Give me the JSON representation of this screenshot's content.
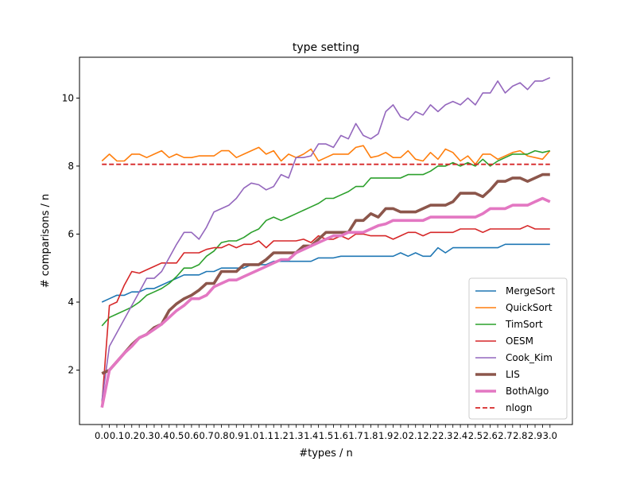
{
  "chart_data": {
    "type": "line",
    "title": "type setting",
    "xlabel": "#types / n",
    "ylabel": "# comparisons / n",
    "xlim": [
      -0.15,
      3.15
    ],
    "ylim": [
      0.4,
      11.2
    ],
    "yticks": [
      2,
      4,
      6,
      8,
      10
    ],
    "grid": false,
    "legend_position": "lower right",
    "x": [
      0.0,
      0.05,
      0.1,
      0.15,
      0.2,
      0.25,
      0.3,
      0.35,
      0.4,
      0.45,
      0.5,
      0.55,
      0.6,
      0.65,
      0.7,
      0.75,
      0.8,
      0.85,
      0.9,
      0.95,
      1.0,
      1.05,
      1.1,
      1.15,
      1.2,
      1.25,
      1.3,
      1.35,
      1.4,
      1.45,
      1.5,
      1.55,
      1.6,
      1.65,
      1.7,
      1.75,
      1.8,
      1.85,
      1.9,
      1.95,
      2.0,
      2.05,
      2.1,
      2.15,
      2.2,
      2.25,
      2.3,
      2.35,
      2.4,
      2.45,
      2.5,
      2.55,
      2.6,
      2.65,
      2.7,
      2.75,
      2.8,
      2.85,
      2.9,
      2.95,
      3.0
    ],
    "x_tick_labels": [
      "0.0",
      "0.1",
      "0.2",
      "0.3",
      "0.4",
      "0.5",
      "0.6",
      "0.7",
      "0.8",
      "0.9",
      "1.0",
      "1.1",
      "1.2",
      "1.3",
      "1.4",
      "1.5",
      "1.6",
      "1.7",
      "1.8",
      "1.9",
      "2.0",
      "2.1",
      "2.2",
      "2.3",
      "2.4",
      "2.5",
      "2.6",
      "2.7",
      "2.8",
      "2.9",
      "3.0"
    ],
    "x_tick_values": [
      0.0,
      0.1,
      0.2,
      0.3,
      0.4,
      0.5,
      0.6,
      0.7,
      0.8,
      0.9,
      1.0,
      1.1,
      1.2,
      1.3,
      1.4,
      1.5,
      1.6,
      1.7,
      1.8,
      1.9,
      2.0,
      2.1,
      2.2,
      2.3,
      2.4,
      2.5,
      2.6,
      2.7,
      2.8,
      2.9,
      3.0
    ],
    "x_tick_count": 61,
    "series": [
      {
        "name": "MergeSort",
        "color": "#1f77b4",
        "width": 1.6,
        "values": [
          4.0,
          4.1,
          4.2,
          4.2,
          4.3,
          4.3,
          4.4,
          4.4,
          4.5,
          4.6,
          4.7,
          4.8,
          4.8,
          4.8,
          4.9,
          4.9,
          5.0,
          5.0,
          5.0,
          5.0,
          5.1,
          5.1,
          5.1,
          5.2,
          5.2,
          5.2,
          5.2,
          5.2,
          5.2,
          5.3,
          5.3,
          5.3,
          5.35,
          5.35,
          5.35,
          5.35,
          5.35,
          5.35,
          5.35,
          5.35,
          5.45,
          5.35,
          5.45,
          5.35,
          5.35,
          5.6,
          5.45,
          5.6,
          5.6,
          5.6,
          5.6,
          5.6,
          5.6,
          5.6,
          5.7,
          5.7,
          5.7,
          5.7,
          5.7,
          5.7,
          5.7
        ]
      },
      {
        "name": "QuickSort",
        "color": "#ff7f0e",
        "width": 1.6,
        "values": [
          8.15,
          8.35,
          8.15,
          8.15,
          8.35,
          8.35,
          8.25,
          8.35,
          8.45,
          8.25,
          8.35,
          8.25,
          8.25,
          8.3,
          8.3,
          8.3,
          8.45,
          8.45,
          8.25,
          8.35,
          8.45,
          8.55,
          8.35,
          8.45,
          8.15,
          8.35,
          8.25,
          8.35,
          8.5,
          8.15,
          8.25,
          8.35,
          8.35,
          8.35,
          8.55,
          8.6,
          8.25,
          8.3,
          8.4,
          8.25,
          8.25,
          8.45,
          8.2,
          8.15,
          8.4,
          8.2,
          8.5,
          8.4,
          8.15,
          8.3,
          8.05,
          8.35,
          8.35,
          8.2,
          8.3,
          8.4,
          8.45,
          8.3,
          8.25,
          8.2,
          8.45
        ]
      },
      {
        "name": "TimSort",
        "color": "#2ca02c",
        "width": 1.6,
        "values": [
          3.3,
          3.55,
          3.65,
          3.75,
          3.85,
          4.0,
          4.2,
          4.3,
          4.4,
          4.55,
          4.75,
          5.0,
          5.0,
          5.1,
          5.35,
          5.5,
          5.75,
          5.8,
          5.8,
          5.9,
          6.05,
          6.15,
          6.4,
          6.5,
          6.4,
          6.5,
          6.6,
          6.7,
          6.8,
          6.9,
          7.05,
          7.05,
          7.15,
          7.25,
          7.4,
          7.4,
          7.65,
          7.65,
          7.65,
          7.65,
          7.65,
          7.75,
          7.75,
          7.75,
          7.85,
          8.0,
          8.0,
          8.1,
          8.0,
          8.1,
          8.0,
          8.2,
          8.0,
          8.15,
          8.25,
          8.35,
          8.35,
          8.35,
          8.45,
          8.4,
          8.45
        ]
      },
      {
        "name": "OESM",
        "color": "#d62728",
        "width": 1.6,
        "values": [
          1.0,
          3.9,
          4.0,
          4.5,
          4.9,
          4.85,
          4.95,
          5.05,
          5.15,
          5.15,
          5.15,
          5.45,
          5.45,
          5.45,
          5.55,
          5.6,
          5.6,
          5.7,
          5.6,
          5.7,
          5.7,
          5.8,
          5.6,
          5.8,
          5.8,
          5.8,
          5.8,
          5.85,
          5.75,
          5.95,
          5.85,
          5.85,
          5.95,
          5.85,
          6.0,
          6.0,
          5.95,
          5.95,
          5.95,
          5.85,
          5.95,
          6.05,
          6.05,
          5.95,
          6.05,
          6.05,
          6.05,
          6.05,
          6.15,
          6.15,
          6.15,
          6.05,
          6.15,
          6.15,
          6.15,
          6.15,
          6.15,
          6.25,
          6.15,
          6.15,
          6.15
        ]
      },
      {
        "name": "Cook_Kim",
        "color": "#9467bd",
        "width": 1.6,
        "values": [
          1.1,
          2.7,
          3.1,
          3.5,
          3.9,
          4.3,
          4.7,
          4.7,
          4.9,
          5.3,
          5.7,
          6.05,
          6.05,
          5.85,
          6.2,
          6.65,
          6.75,
          6.85,
          7.05,
          7.35,
          7.5,
          7.45,
          7.3,
          7.4,
          7.75,
          7.65,
          8.25,
          8.25,
          8.3,
          8.65,
          8.65,
          8.55,
          8.9,
          8.8,
          9.25,
          8.9,
          8.8,
          8.95,
          9.6,
          9.8,
          9.45,
          9.35,
          9.6,
          9.5,
          9.8,
          9.6,
          9.8,
          9.9,
          9.8,
          10.0,
          9.8,
          10.15,
          10.15,
          10.5,
          10.15,
          10.35,
          10.45,
          10.25,
          10.5,
          10.5,
          10.6
        ]
      },
      {
        "name": "LIS",
        "color": "#8c564b",
        "width": 3.6,
        "values": [
          1.9,
          2.0,
          2.25,
          2.5,
          2.75,
          2.95,
          3.05,
          3.25,
          3.35,
          3.75,
          3.95,
          4.1,
          4.2,
          4.35,
          4.55,
          4.55,
          4.9,
          4.9,
          4.9,
          5.1,
          5.1,
          5.1,
          5.25,
          5.45,
          5.45,
          5.45,
          5.45,
          5.65,
          5.65,
          5.85,
          6.05,
          6.05,
          6.05,
          6.05,
          6.4,
          6.4,
          6.6,
          6.5,
          6.75,
          6.75,
          6.65,
          6.65,
          6.65,
          6.75,
          6.85,
          6.85,
          6.85,
          6.95,
          7.2,
          7.2,
          7.2,
          7.1,
          7.3,
          7.55,
          7.55,
          7.65,
          7.65,
          7.55,
          7.65,
          7.75,
          7.75
        ]
      },
      {
        "name": "BothAlgo",
        "color": "#e377c2",
        "width": 3.6,
        "values": [
          0.9,
          2.0,
          2.25,
          2.5,
          2.7,
          2.95,
          3.05,
          3.2,
          3.35,
          3.55,
          3.75,
          3.9,
          4.1,
          4.1,
          4.2,
          4.45,
          4.55,
          4.65,
          4.65,
          4.75,
          4.85,
          4.95,
          5.05,
          5.15,
          5.25,
          5.25,
          5.45,
          5.55,
          5.65,
          5.75,
          5.85,
          5.95,
          5.95,
          6.05,
          6.05,
          6.05,
          6.15,
          6.25,
          6.3,
          6.4,
          6.4,
          6.4,
          6.4,
          6.4,
          6.5,
          6.5,
          6.5,
          6.5,
          6.5,
          6.5,
          6.5,
          6.6,
          6.75,
          6.75,
          6.75,
          6.85,
          6.85,
          6.85,
          6.95,
          7.05,
          6.95
        ]
      },
      {
        "name": "nlogn",
        "color": "#d62728",
        "width": 1.8,
        "dashed": true,
        "values": [
          8.05,
          8.05,
          8.05,
          8.05,
          8.05,
          8.05,
          8.05,
          8.05,
          8.05,
          8.05,
          8.05,
          8.05,
          8.05,
          8.05,
          8.05,
          8.05,
          8.05,
          8.05,
          8.05,
          8.05,
          8.05,
          8.05,
          8.05,
          8.05,
          8.05,
          8.05,
          8.05,
          8.05,
          8.05,
          8.05,
          8.05,
          8.05,
          8.05,
          8.05,
          8.05,
          8.05,
          8.05,
          8.05,
          8.05,
          8.05,
          8.05,
          8.05,
          8.05,
          8.05,
          8.05,
          8.05,
          8.05,
          8.05,
          8.05,
          8.05,
          8.05,
          8.05,
          8.05,
          8.05,
          8.05,
          8.05,
          8.05,
          8.05,
          8.05,
          8.05,
          8.05
        ]
      }
    ]
  }
}
